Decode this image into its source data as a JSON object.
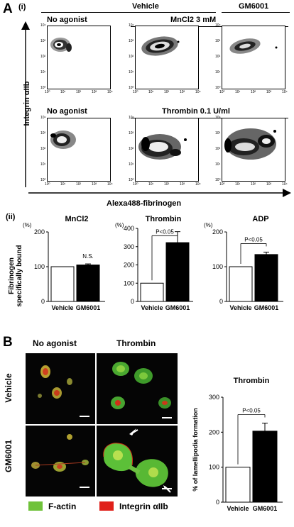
{
  "panel_A": {
    "label": "A",
    "sub_i": "(i)",
    "header_vehicle": "Vehicle",
    "header_gm6001": "GM6001",
    "label_no_agonist_top": "No agonist",
    "label_mncl2": "MnCl2 3 mM",
    "label_no_agonist_bottom": "No agonist",
    "label_thrombin": "Thrombin 0.1 U/ml",
    "y_axis_label": "Integrin αIIb",
    "x_axis_label": "Alexa488-fibrinogen",
    "tick_labels": [
      "10⁰",
      "10¹",
      "10²",
      "10³",
      "10⁴"
    ]
  },
  "panel_A_ii": {
    "sub_ii": "(ii)",
    "y_axis_label_line1": "Fibrinogen",
    "y_axis_label_line2": "specifically bound",
    "percent_unit": "(%)"
  },
  "chart_data": [
    {
      "type": "bar",
      "title": "MnCl2",
      "categories": [
        "Vehicle",
        "GM6001"
      ],
      "values": [
        100,
        105
      ],
      "errors": [
        0,
        3
      ],
      "ylim": [
        0,
        200
      ],
      "yticks": [
        0,
        100,
        200
      ],
      "ylabel": "Fibrinogen specifically bound (%)",
      "annotation": "N.S.",
      "colors": [
        "#ffffff",
        "#000000"
      ]
    },
    {
      "type": "bar",
      "title": "Thrombin",
      "categories": [
        "Vehicle",
        "GM6001"
      ],
      "values": [
        100,
        322
      ],
      "errors": [
        0,
        60
      ],
      "ylim": [
        0,
        400
      ],
      "yticks": [
        0,
        100,
        200,
        300,
        400
      ],
      "annotation": "P<0.05",
      "colors": [
        "#ffffff",
        "#000000"
      ]
    },
    {
      "type": "bar",
      "title": "ADP",
      "categories": [
        "Vehicle",
        "GM6001"
      ],
      "values": [
        100,
        135
      ],
      "errors": [
        0,
        7
      ],
      "ylim": [
        0,
        200
      ],
      "yticks": [
        0,
        100,
        200
      ],
      "annotation": "P<0.05",
      "colors": [
        "#ffffff",
        "#000000"
      ]
    },
    {
      "type": "bar",
      "title": "Thrombin",
      "categories": [
        "Vehicle",
        "GM6001"
      ],
      "values": [
        100,
        203
      ],
      "errors": [
        0,
        23
      ],
      "ylim": [
        0,
        300
      ],
      "yticks": [
        0,
        100,
        200,
        300
      ],
      "ylabel": "% of lamellipodia formation",
      "annotation": "P<0.05",
      "colors": [
        "#ffffff",
        "#000000"
      ]
    }
  ],
  "panel_B": {
    "label": "B",
    "col_no_agonist": "No agonist",
    "col_thrombin": "Thrombin",
    "row_vehicle": "Vehicle",
    "row_gm6001": "GM6001",
    "legend_factin": "F-actin",
    "legend_integrin": "Integrin αIIb",
    "factin_color": "#6fc23a",
    "integrin_color": "#e0201a"
  }
}
